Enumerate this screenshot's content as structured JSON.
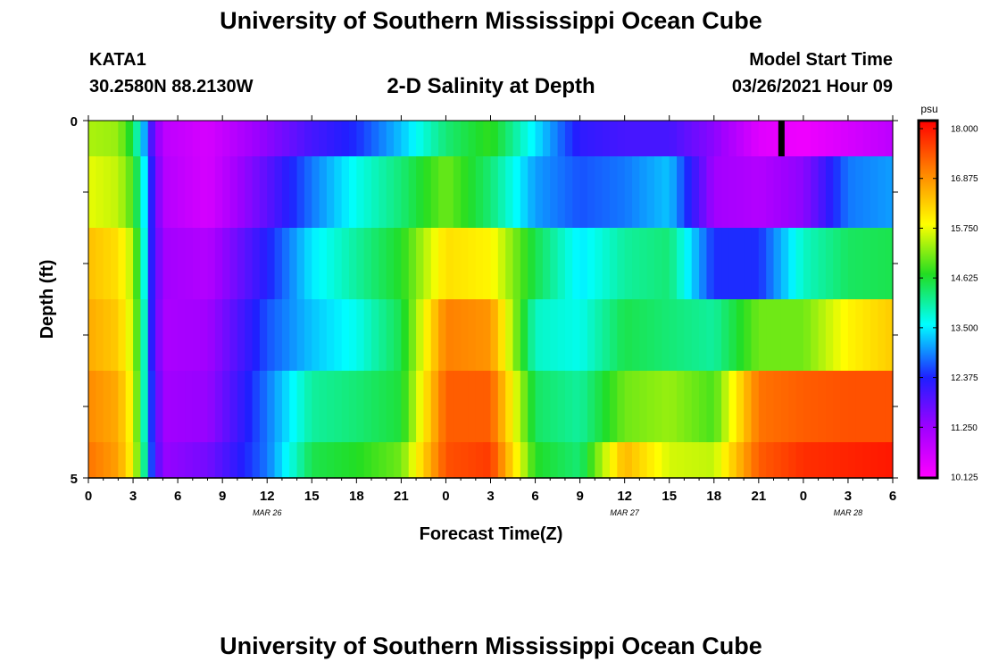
{
  "header": {
    "title": "University of Southern Mississippi Ocean Cube",
    "station_id": "KATA1",
    "station_coords": "30.2580N 88.2130W",
    "subtitle": "2-D Salinity at Depth",
    "model_start_label": "Model Start Time",
    "model_start_value": "03/26/2021 Hour 09"
  },
  "footer": {
    "title": "University of Southern Mississippi Ocean Cube"
  },
  "chart_data": {
    "type": "heatmap",
    "title": "2-D Salinity at Depth",
    "xlabel": "Forecast Time(Z)",
    "ylabel": "Depth (ft)",
    "x_range_hours": [
      0,
      54
    ],
    "y_range_ft": [
      0,
      5
    ],
    "x_tick_hours": [
      0,
      3,
      6,
      9,
      12,
      15,
      18,
      21,
      24,
      27,
      30,
      33,
      36,
      39,
      42,
      45,
      48,
      51,
      54
    ],
    "x_tick_labels": [
      "0",
      "3",
      "6",
      "9",
      "12",
      "15",
      "18",
      "21",
      "0",
      "3",
      "6",
      "9",
      "12",
      "15",
      "18",
      "21",
      "0",
      "3",
      "6"
    ],
    "y_tick_labels": [
      "0",
      "5"
    ],
    "date_labels": [
      {
        "text": "MAR 26",
        "hour": 12
      },
      {
        "text": "MAR 27",
        "hour": 36
      },
      {
        "text": "MAR 28",
        "hour": 51
      }
    ],
    "colorbar": {
      "unit": "psu",
      "min": 10.125,
      "max": 18.0,
      "tick_labels": [
        "18.000",
        "16.875",
        "15.750",
        "14.625",
        "13.500",
        "12.375",
        "11.250",
        "10.125"
      ],
      "tick_values": [
        18.0,
        16.875,
        15.75,
        14.625,
        13.5,
        12.375,
        11.25,
        10.125
      ]
    },
    "depth_layers_ft": [
      [
        0,
        0.5
      ],
      [
        0.5,
        1.5
      ],
      [
        1.5,
        2.5
      ],
      [
        2.5,
        3.5
      ],
      [
        3.5,
        4.5
      ],
      [
        4.5,
        5
      ]
    ],
    "key_hours": [
      0,
      2,
      3,
      3.7,
      4.2,
      5,
      8,
      12,
      15,
      18,
      21,
      24,
      27,
      30,
      33,
      36,
      39,
      42,
      45,
      48,
      51,
      54
    ],
    "salinity_psu": [
      [
        15.3,
        15.2,
        14.4,
        13.2,
        12.0,
        10.9,
        10.6,
        11.4,
        12.0,
        12.4,
        13.2,
        14.2,
        14.7,
        13.4,
        12.2,
        12.0,
        12.0,
        11.4,
        10.5,
        10.3,
        10.6,
        10.9
      ],
      [
        15.6,
        15.4,
        14.8,
        13.6,
        12.3,
        11.0,
        10.6,
        11.8,
        12.8,
        13.6,
        14.2,
        15.0,
        14.2,
        13.0,
        12.6,
        12.8,
        13.2,
        11.2,
        11.0,
        11.4,
        12.8,
        13.0
      ],
      [
        16.3,
        16.0,
        15.3,
        13.8,
        12.3,
        11.2,
        11.0,
        12.3,
        13.4,
        14.0,
        14.6,
        16.0,
        15.8,
        14.4,
        13.4,
        14.0,
        14.2,
        12.4,
        12.4,
        13.8,
        14.3,
        14.4
      ],
      [
        16.5,
        16.2,
        15.4,
        14.0,
        12.3,
        11.1,
        11.2,
        12.6,
        13.2,
        13.6,
        14.4,
        16.9,
        16.7,
        13.8,
        13.6,
        14.4,
        14.2,
        14.0,
        15.0,
        15.0,
        15.8,
        16.2
      ],
      [
        16.8,
        16.5,
        15.6,
        14.0,
        12.5,
        11.2,
        11.3,
        12.8,
        14.0,
        14.2,
        14.5,
        17.2,
        17.2,
        14.3,
        14.0,
        15.0,
        15.2,
        14.8,
        17.0,
        17.2,
        17.3,
        17.3
      ],
      [
        17.0,
        16.6,
        15.7,
        14.2,
        12.6,
        11.3,
        11.6,
        12.8,
        14.4,
        14.6,
        15.0,
        17.3,
        17.5,
        14.6,
        14.2,
        16.4,
        15.5,
        15.4,
        17.2,
        17.6,
        17.7,
        17.8
      ]
    ],
    "gap_marker": {
      "hour": 46.5,
      "depth_ft": [
        0,
        0.5
      ],
      "note": "black bar"
    }
  }
}
